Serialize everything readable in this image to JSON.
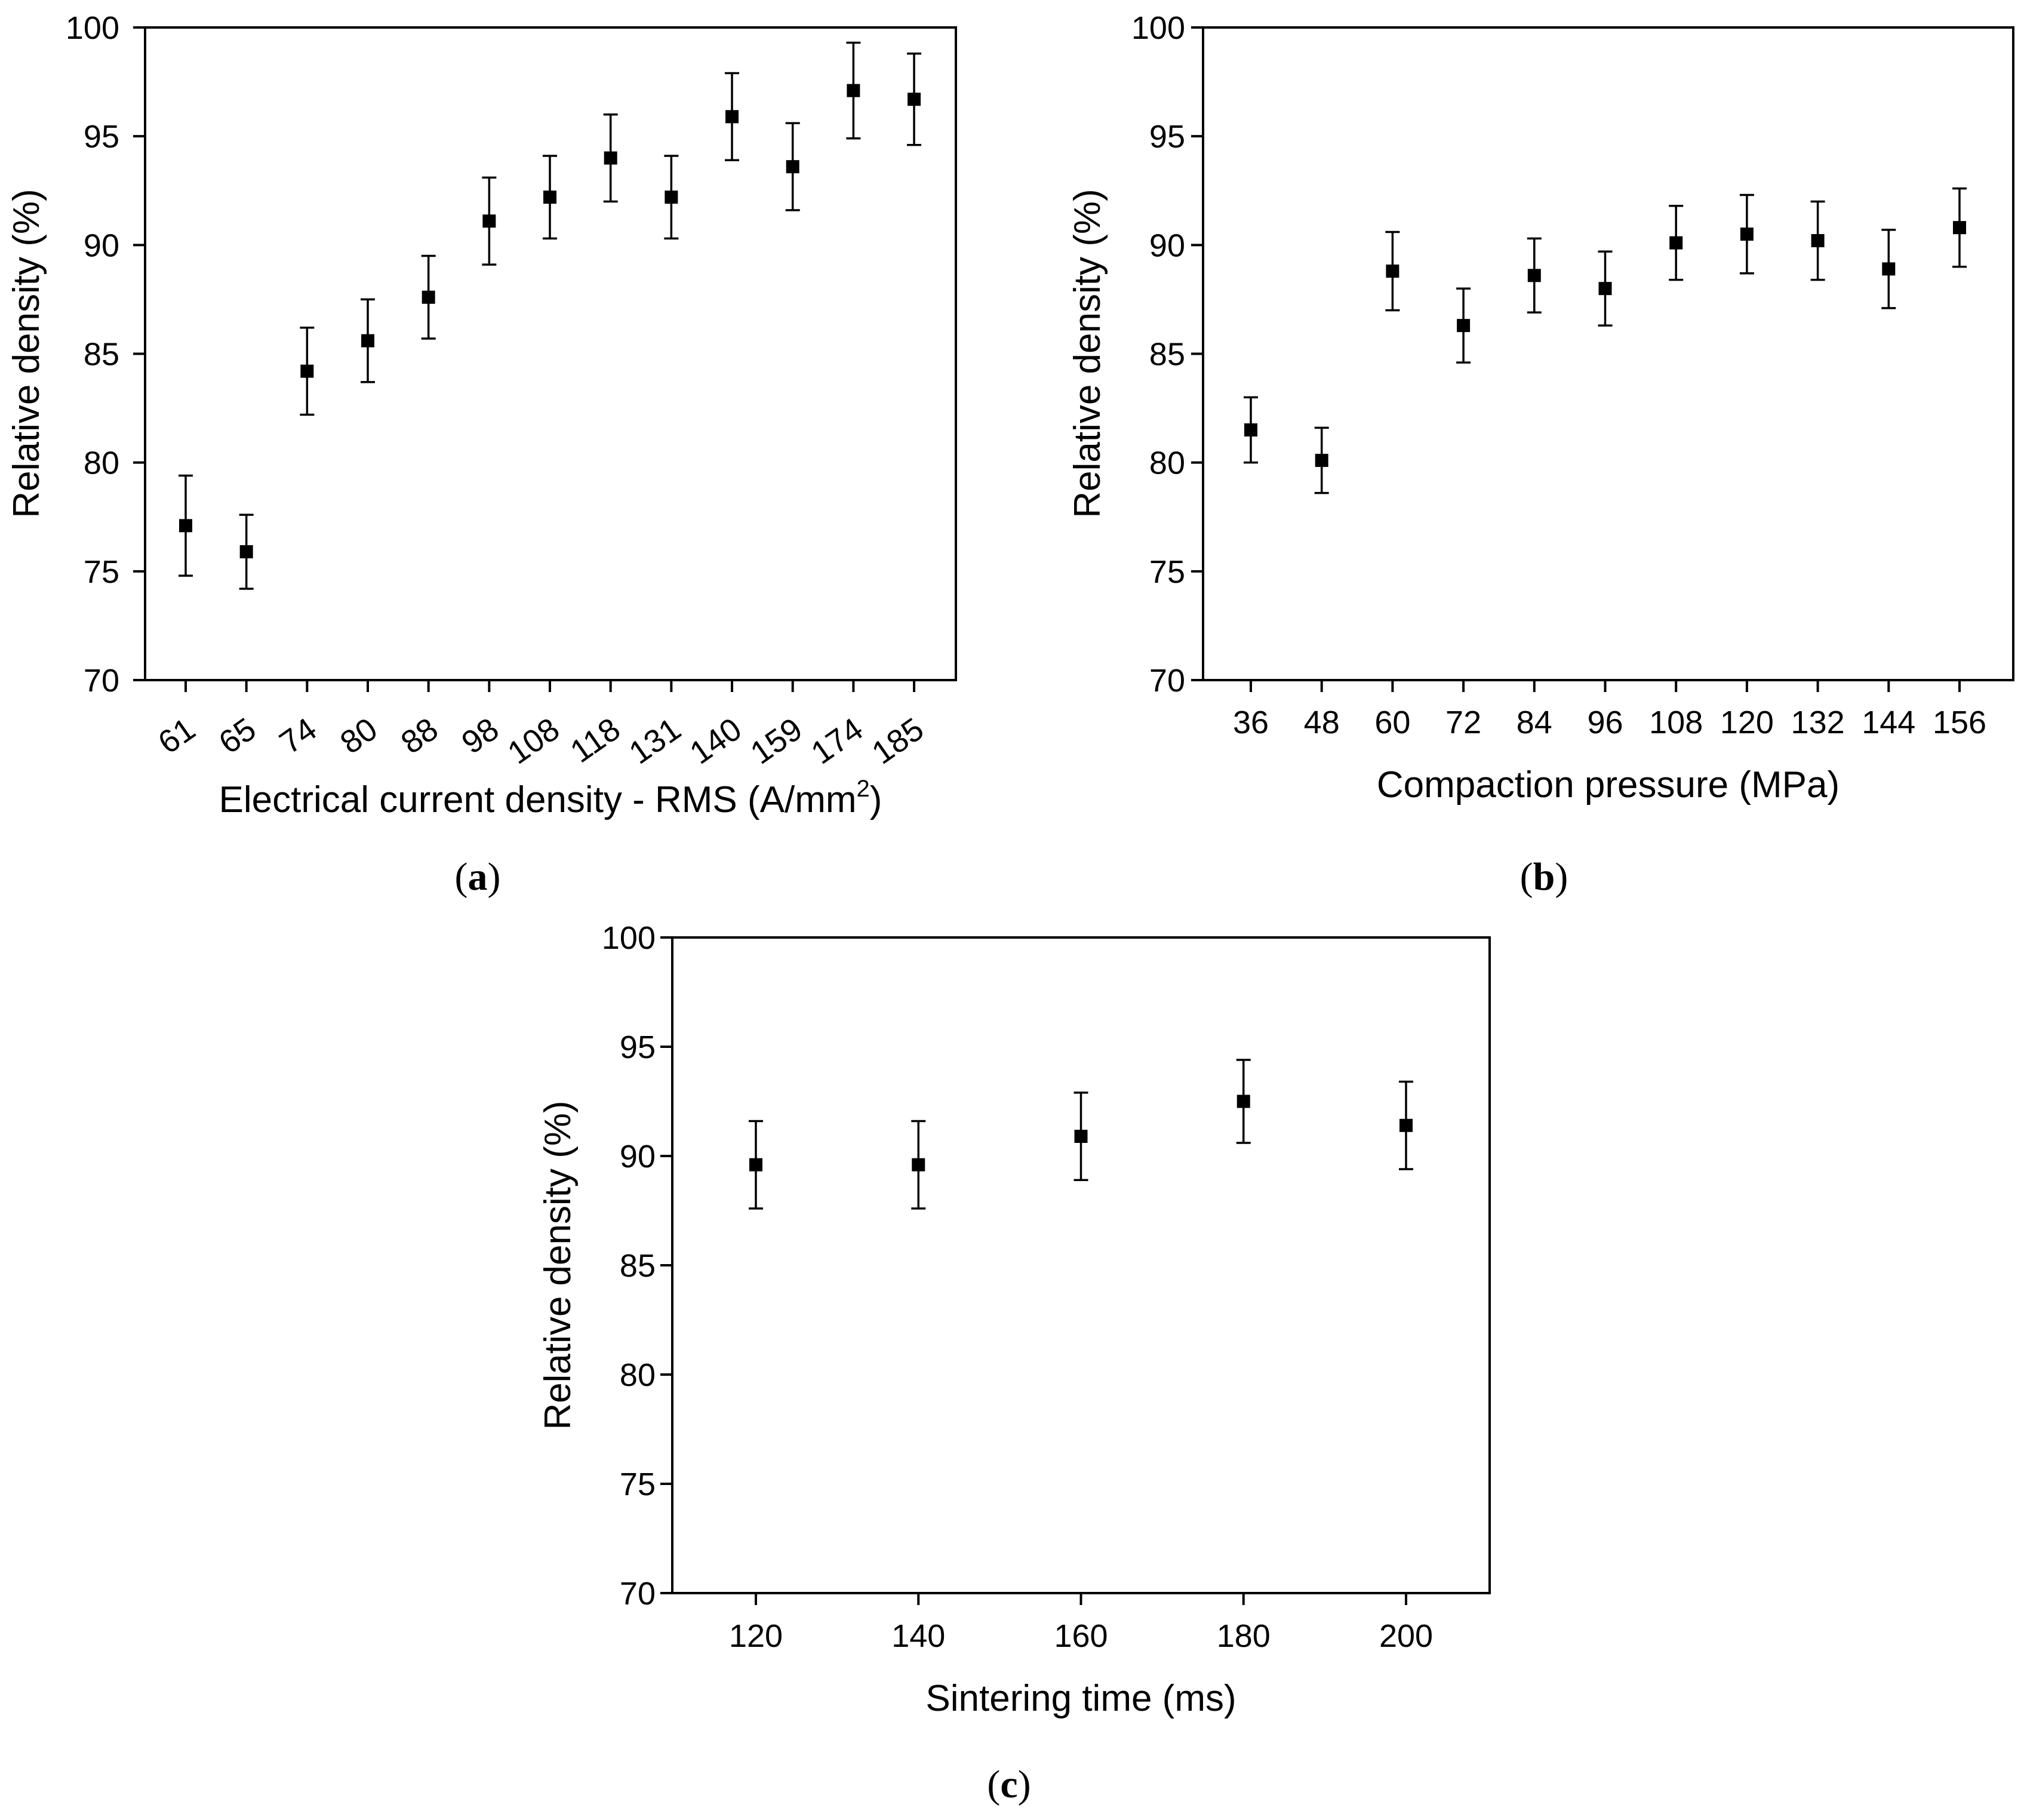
{
  "chart_data": [
    {
      "type": "scatter",
      "panel_label": "a",
      "xlabel": "Electrical current density - RMS (A/mm",
      "xlabel_superscript": "2",
      "xlabel_suffix": ")",
      "ylabel": "Relative density (%)",
      "categories": [
        "61",
        "65",
        "74",
        "80",
        "88",
        "98",
        "108",
        "118",
        "131",
        "140",
        "159",
        "174",
        "185"
      ],
      "values": [
        77.1,
        75.9,
        84.2,
        85.6,
        87.6,
        91.1,
        92.2,
        94.0,
        92.2,
        95.9,
        93.6,
        97.1,
        96.7
      ],
      "errors": [
        2.3,
        1.7,
        2.0,
        1.9,
        1.9,
        2.0,
        1.9,
        2.0,
        1.9,
        2.0,
        2.0,
        2.2,
        2.1
      ],
      "ylim": [
        70,
        100
      ],
      "yticks": [
        "70",
        "75",
        "80",
        "85",
        "90",
        "95",
        "100"
      ],
      "rotated_xticks": true
    },
    {
      "type": "scatter",
      "panel_label": "b",
      "xlabel": "Compaction pressure (MPa)",
      "ylabel": "Relative density (%)",
      "categories": [
        "36",
        "48",
        "60",
        "72",
        "84",
        "96",
        "108",
        "120",
        "132",
        "144",
        "156"
      ],
      "values": [
        81.5,
        80.1,
        88.8,
        86.3,
        88.6,
        88.0,
        90.1,
        90.5,
        90.2,
        88.9,
        90.8
      ],
      "errors": [
        1.5,
        1.5,
        1.8,
        1.7,
        1.7,
        1.7,
        1.7,
        1.8,
        1.8,
        1.8,
        1.8
      ],
      "ylim": [
        70,
        100
      ],
      "yticks": [
        "70",
        "75",
        "80",
        "85",
        "90",
        "95",
        "100"
      ],
      "rotated_xticks": false
    },
    {
      "type": "scatter",
      "panel_label": "c",
      "xlabel": "Sintering time (ms)",
      "ylabel": "Relative density (%)",
      "categories": [
        "120",
        "140",
        "160",
        "180",
        "200"
      ],
      "values": [
        89.6,
        89.6,
        90.9,
        92.5,
        91.4
      ],
      "errors": [
        2.0,
        2.0,
        2.0,
        1.9,
        2.0
      ],
      "ylim": [
        70,
        100
      ],
      "yticks": [
        "70",
        "75",
        "80",
        "85",
        "90",
        "95",
        "100"
      ],
      "rotated_xticks": false
    }
  ]
}
